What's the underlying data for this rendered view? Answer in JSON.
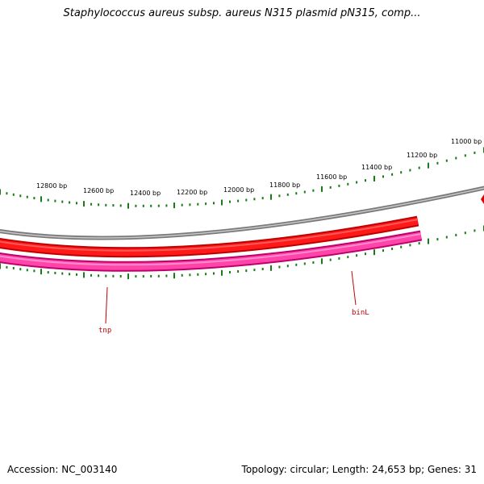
{
  "title": "Staphylococcus aureus subsp. aureus N315 plasmid pN315, comp...",
  "accession": "Accession: NC_003140",
  "footer_info": "Topology: circular; Length: 24,653 bp; Genes: 31",
  "colors": {
    "backbone_outer": "#808080",
    "backbone_inner": "#c8c8c8",
    "forward_gene": "#ff0000",
    "forward_gene_dark": "#c00000",
    "reverse_gene": "#ff44aa",
    "reverse_gene_dark": "#c0006a",
    "tick": "#1a7a1a",
    "gene_label": "#c00000"
  },
  "scale_labels": [
    "11000 bp",
    "11200 bp",
    "11400 bp",
    "11600 bp",
    "11800 bp",
    "12000 bp",
    "12200 bp",
    "12400 bp",
    "12600 bp",
    "12800 bp"
  ],
  "genes": [
    {
      "name": "tnp",
      "strand": "reverse"
    },
    {
      "name": "binL",
      "strand": "reverse"
    }
  ]
}
